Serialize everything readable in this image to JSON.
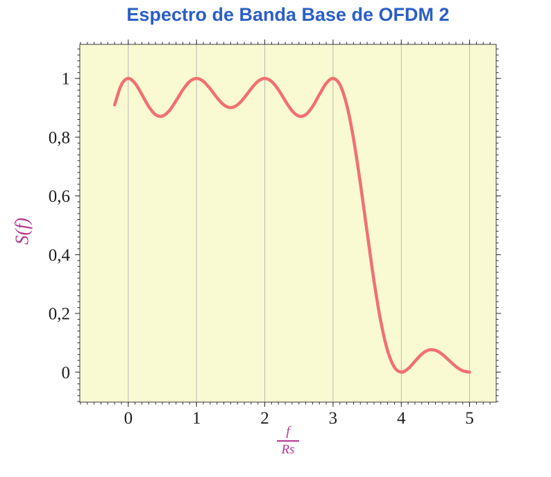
{
  "title": {
    "text": "Espectro de Banda Base de OFDM 2"
  },
  "labels": {
    "ylabel": "S(f)",
    "frac_num": "f",
    "frac_den": "Rs"
  },
  "style": {
    "title_color": "#2a5fc8",
    "axis_label_color": "#b5368f",
    "curve_color": "#f17070",
    "grid_color": "#b9b9b9",
    "frame_color": "#5a5a5a",
    "tick_color": "#2b2b2b",
    "tick_label_color": "#1c1c1c",
    "plot_bg": "#fafad2",
    "page_bg": "#ffffff"
  },
  "chart_data": {
    "type": "line",
    "title": "Espectro de Banda Base de OFDM 2",
    "xlabel": "f/Rs",
    "ylabel": "S(f)",
    "xlim": [
      -0.71,
      5.39
    ],
    "ylim": [
      -0.102,
      1.116
    ],
    "x_ticks": [
      0,
      1,
      2,
      3,
      4,
      5
    ],
    "x_tick_labels": [
      "0",
      "1",
      "2",
      "3",
      "4",
      "5"
    ],
    "y_ticks": [
      0,
      0.2,
      0.4,
      0.6,
      0.8,
      1
    ],
    "y_tick_labels": [
      "0",
      "0,2",
      "0,4",
      "0,6",
      "0,8",
      "1"
    ],
    "x_minor_step": 0.1,
    "y_minor_step": 0.02,
    "grid": "x-major",
    "legend_position": "none",
    "series": [
      {
        "name": "S(f)",
        "x": [
          -0.2,
          -0.1,
          0,
          0.1,
          0.2,
          0.3,
          0.4,
          0.5,
          0.6,
          0.7,
          0.8,
          0.9,
          1,
          1.1,
          1.2,
          1.3,
          1.4,
          1.5,
          1.6,
          1.7,
          1.8,
          1.9,
          2,
          2.1,
          2.2,
          2.3,
          2.4,
          2.5,
          2.6,
          2.7,
          2.8,
          2.9,
          3,
          3.1,
          3.2,
          3.3,
          3.4,
          3.5,
          3.6,
          3.7,
          3.8,
          3.9,
          4,
          4.1,
          4.2,
          4.3,
          4.4,
          4.5,
          4.6,
          4.7,
          4.8,
          4.9,
          5
        ],
        "y": [
          0.9101,
          0.9788,
          1,
          0.9833,
          0.9451,
          0.9042,
          0.8767,
          0.8718,
          0.89,
          0.924,
          0.9614,
          0.9897,
          1,
          0.9902,
          0.965,
          0.9344,
          0.9099,
          0.9006,
          0.9099,
          0.9344,
          0.965,
          0.9902,
          1,
          0.9897,
          0.9614,
          0.924,
          0.89,
          0.8718,
          0.8767,
          0.9042,
          0.9451,
          0.9833,
          1,
          0.9788,
          0.9101,
          0.7947,
          0.6434,
          0.4748,
          0.311,
          0.1722,
          0.0724,
          0.0164,
          0,
          0.0118,
          0.0369,
          0.0615,
          0.0753,
          0.0745,
          0.0608,
          0.0399,
          0.0192,
          0.0049,
          0
        ]
      }
    ]
  }
}
